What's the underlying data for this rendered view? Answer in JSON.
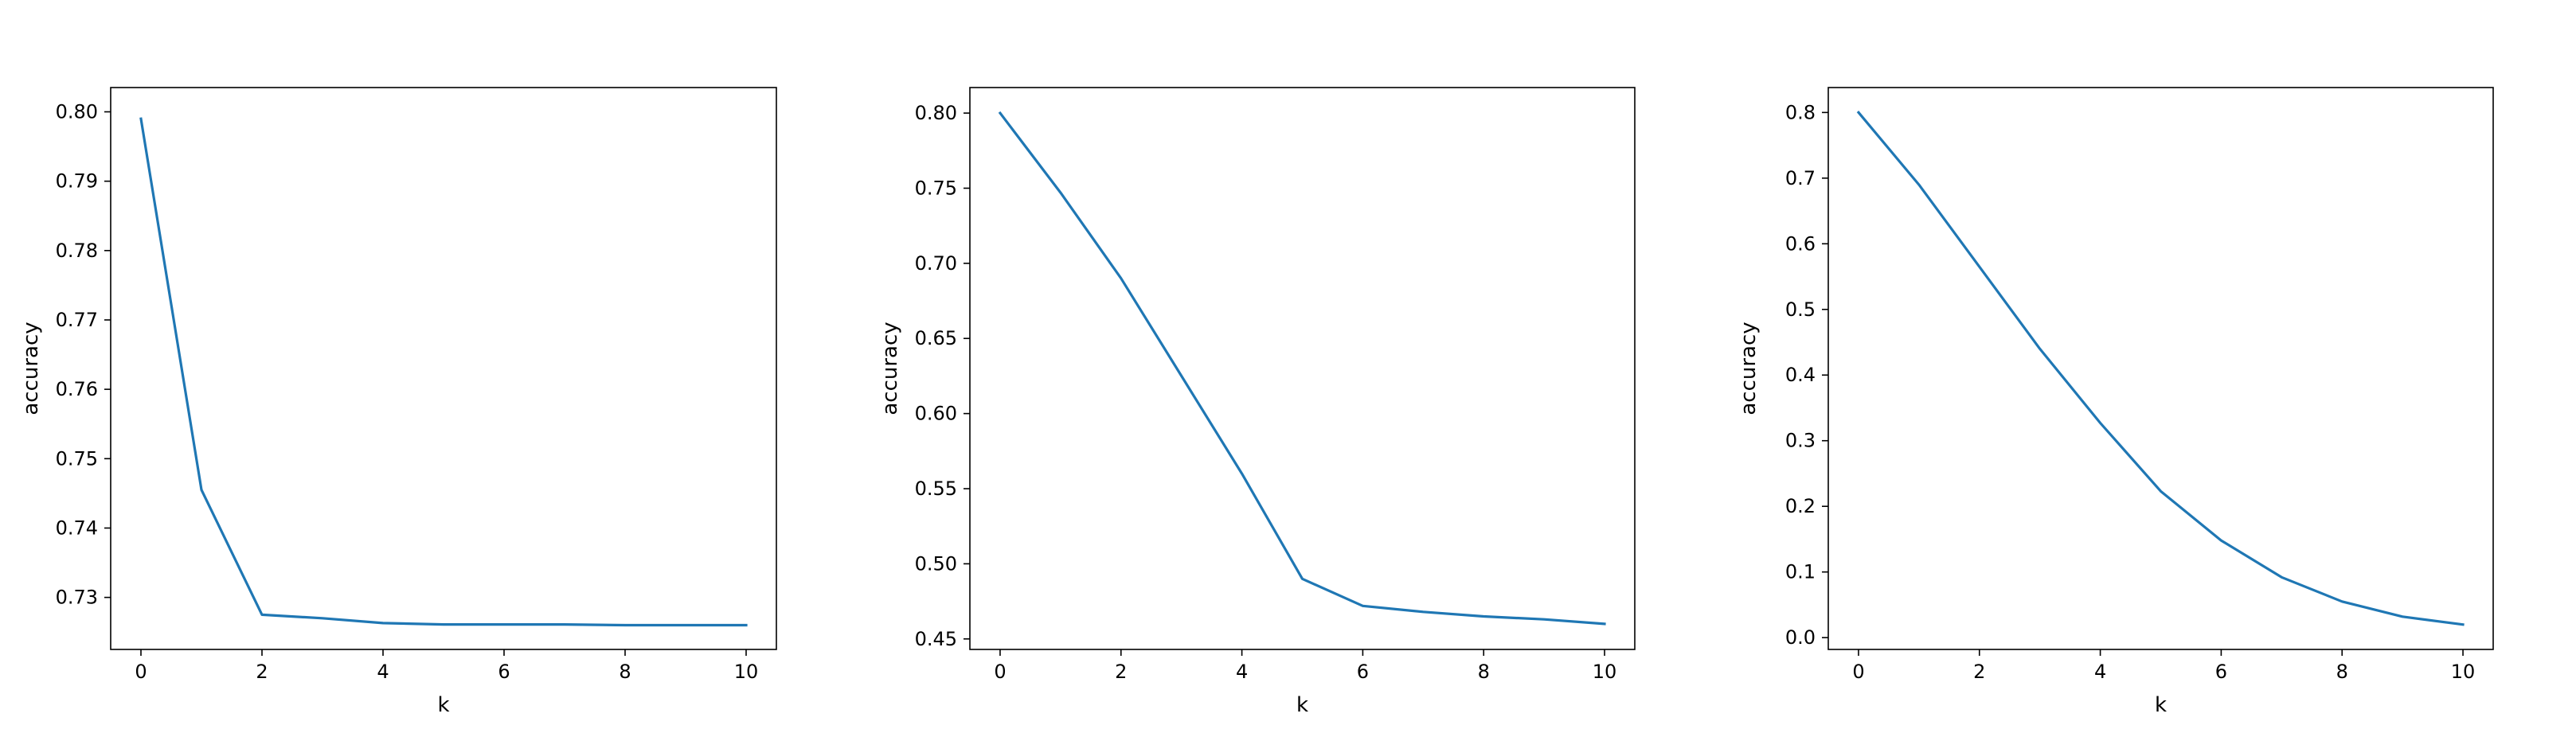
{
  "chart_data": [
    {
      "type": "line",
      "xlabel": "k",
      "ylabel": "accuracy",
      "xlim": [
        -0.5,
        10.5
      ],
      "ylim": [
        0.7225,
        0.8035
      ],
      "xticks": [
        0,
        2,
        4,
        6,
        8,
        10
      ],
      "yticks": [
        0.73,
        0.74,
        0.75,
        0.76,
        0.77,
        0.78,
        0.79,
        0.8
      ],
      "ytick_labels": [
        "0.73",
        "0.74",
        "0.75",
        "0.76",
        "0.77",
        "0.78",
        "0.79",
        "0.80"
      ],
      "grid": false,
      "series": [
        {
          "x": [
            0,
            1,
            2,
            3,
            4,
            5,
            6,
            7,
            8,
            9,
            10
          ],
          "y": [
            0.799,
            0.7455,
            0.7275,
            0.727,
            0.7263,
            0.7261,
            0.7261,
            0.7261,
            0.726,
            0.726,
            0.726
          ]
        }
      ]
    },
    {
      "type": "line",
      "xlabel": "k",
      "ylabel": "accuracy",
      "xlim": [
        -0.5,
        10.5
      ],
      "ylim": [
        0.443,
        0.817
      ],
      "xticks": [
        0,
        2,
        4,
        6,
        8,
        10
      ],
      "yticks": [
        0.45,
        0.5,
        0.55,
        0.6,
        0.65,
        0.7,
        0.75,
        0.8
      ],
      "ytick_labels": [
        "0.45",
        "0.50",
        "0.55",
        "0.60",
        "0.65",
        "0.70",
        "0.75",
        "0.80"
      ],
      "grid": false,
      "series": [
        {
          "x": [
            0,
            1,
            2,
            3,
            4,
            5,
            6,
            7,
            8,
            9,
            10
          ],
          "y": [
            0.8,
            0.747,
            0.69,
            0.625,
            0.56,
            0.49,
            0.472,
            0.468,
            0.465,
            0.463,
            0.46
          ]
        }
      ]
    },
    {
      "type": "line",
      "xlabel": "k",
      "ylabel": "accuracy",
      "xlim": [
        -0.5,
        10.5
      ],
      "ylim": [
        -0.018,
        0.838
      ],
      "xticks": [
        0,
        2,
        4,
        6,
        8,
        10
      ],
      "yticks": [
        0.0,
        0.1,
        0.2,
        0.3,
        0.4,
        0.5,
        0.6,
        0.7,
        0.8
      ],
      "ytick_labels": [
        "0.0",
        "0.1",
        "0.2",
        "0.3",
        "0.4",
        "0.5",
        "0.6",
        "0.7",
        "0.8"
      ],
      "grid": false,
      "series": [
        {
          "x": [
            0,
            1,
            2,
            3,
            4,
            5,
            6,
            7,
            8,
            9,
            10
          ],
          "y": [
            0.8,
            0.69,
            0.565,
            0.44,
            0.327,
            0.223,
            0.148,
            0.092,
            0.055,
            0.032,
            0.02
          ]
        }
      ]
    }
  ],
  "colors": {
    "line": "#1f77b4",
    "axes": "#000000",
    "background": "#ffffff"
  }
}
